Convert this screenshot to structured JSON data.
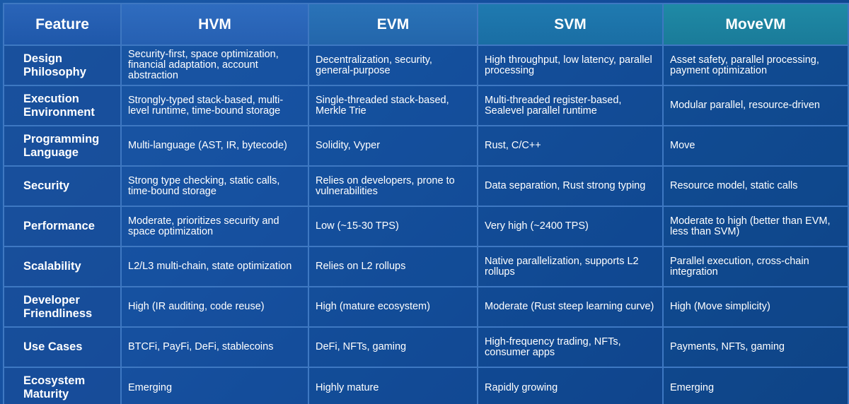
{
  "table": {
    "headers": [
      "Feature",
      "HVM",
      "EVM",
      "SVM",
      "MoveVM"
    ],
    "rows": [
      {
        "feature": "Design Philosophy",
        "hvm": "Security-first, space optimization, financial adaptation, account abstraction",
        "evm": "Decentralization, security, general-purpose",
        "svm": "High throughput, low latency, parallel processing",
        "movevm": "Asset safety, parallel processing, payment optimization"
      },
      {
        "feature": "Execution Environment",
        "hvm": "Strongly-typed stack-based, multi-level runtime, time-bound storage",
        "evm": "Single-threaded stack-based, Merkle Trie",
        "svm": "Multi-threaded register-based, Sealevel parallel runtime",
        "movevm": "Modular parallel, resource-driven"
      },
      {
        "feature": "Programming Language",
        "hvm": "Multi-language (AST, IR, bytecode)",
        "evm": "Solidity, Vyper",
        "svm": "Rust, C/C++",
        "movevm": "Move"
      },
      {
        "feature": "Security",
        "hvm": "Strong type checking, static calls, time-bound storage",
        "evm": "Relies on developers, prone to vulnerabilities",
        "svm": "Data separation, Rust strong typing",
        "movevm": "Resource model, static calls"
      },
      {
        "feature": "Performance",
        "hvm": "Moderate, prioritizes security and space optimization",
        "evm": "Low (~15-30 TPS)",
        "svm": "Very high (~2400 TPS)",
        "movevm": "Moderate to high (better than EVM, less than SVM)"
      },
      {
        "feature": "Scalability",
        "hvm": "L2/L3 multi-chain, state optimization",
        "evm": "Relies on L2 rollups",
        "svm": "Native parallelization, supports L2 rollups",
        "movevm": "Parallel execution, cross-chain integration"
      },
      {
        "feature": "Developer Friendliness",
        "hvm": "High (IR auditing, code reuse)",
        "evm": "High (mature ecosystem)",
        "svm": "Moderate (Rust steep learning curve)",
        "movevm": "High (Move simplicity)"
      },
      {
        "feature": "Use Cases",
        "hvm": "BTCFi, PayFi, DeFi, stablecoins",
        "evm": "DeFi, NFTs, gaming",
        "svm": "High-frequency trading, NFTs, consumer apps",
        "movevm": "Payments, NFTs, gaming"
      },
      {
        "feature": "Ecosystem Maturity",
        "hvm": "Emerging",
        "evm": "Highly mature",
        "svm": "Rapidly growing",
        "movevm": "Emerging"
      }
    ]
  }
}
